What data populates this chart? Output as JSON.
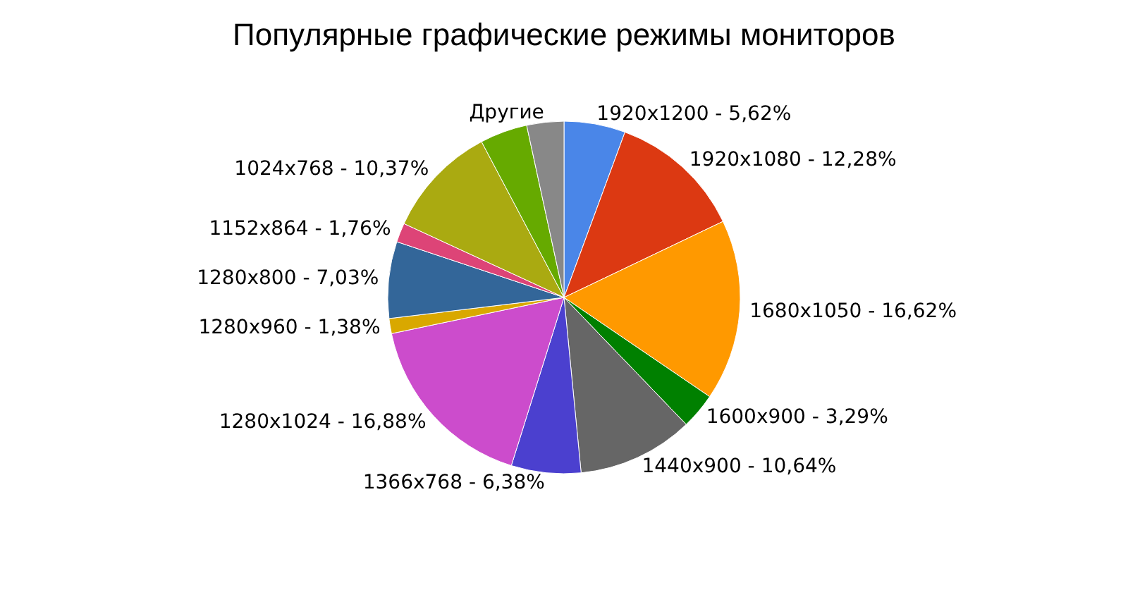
{
  "chart_data": {
    "type": "pie",
    "title": "Популярные графические режимы мониторов",
    "categories": [
      "1920x1200 - 5,62%",
      "1920x1080 - 12,28%",
      "1680x1050 - 16,62%",
      "1600x900 - 3,29%",
      "1440x900 - 10,64%",
      "1366x768 - 6,38%",
      "1280x1024 - 16,88%",
      "1280x960 - 1,38%",
      "1280x800 - 7,03%",
      "1152x864 - 1,76%",
      "1024x768 - 10,37%",
      null,
      "Другие"
    ],
    "values": [
      5.62,
      12.28,
      16.62,
      3.29,
      10.64,
      6.38,
      16.88,
      1.38,
      7.03,
      1.76,
      10.37,
      4.35,
      3.4
    ],
    "colors": [
      "#4a86e8",
      "#dc3912",
      "#ff9900",
      "#008000",
      "#666666",
      "#4b40cf",
      "#cc4ccc",
      "#d9a800",
      "#336699",
      "#dd4477",
      "#aaaa11",
      "#66aa00",
      "#888888"
    ],
    "legend": false
  }
}
